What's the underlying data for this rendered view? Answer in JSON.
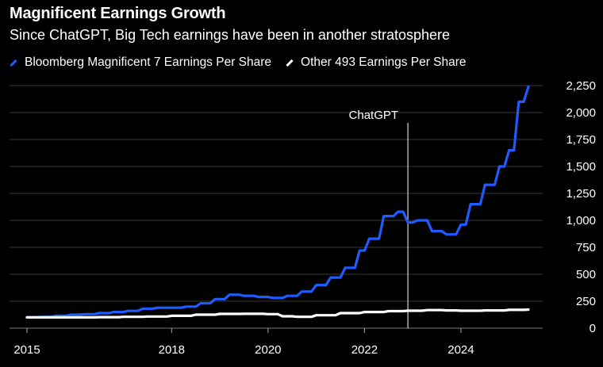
{
  "header": {
    "title": "Magnificent Earnings Growth",
    "subtitle": "Since ChatGPT, Big Tech earnings have been in another stratosphere"
  },
  "colors": {
    "background": "#000000",
    "mag7": "#1f5cff",
    "other": "#ffffff",
    "grid": "#3a3a3a"
  },
  "chart_data": {
    "type": "line",
    "title": "Magnificent Earnings Growth",
    "subtitle": "Since ChatGPT, Big Tech earnings have been in another stratosphere",
    "xlabel": "",
    "ylabel": "",
    "xlim": [
      2015.0,
      2025.4
    ],
    "ylim": [
      0,
      2250
    ],
    "x_ticks": [
      2015,
      2018,
      2020,
      2022,
      2024
    ],
    "y_ticks": [
      0,
      250,
      500,
      750,
      1000,
      1250,
      1500,
      1750,
      2000,
      2250
    ],
    "y_tick_labels": [
      "0",
      "250",
      "500",
      "750",
      "1,000",
      "1,250",
      "1,500",
      "1,750",
      "2,000",
      "2,250"
    ],
    "grid": true,
    "legend_position": "top-left",
    "annotation": {
      "label": "ChatGPT",
      "x": 2022.9
    },
    "series": [
      {
        "name": "Bloomberg Magnificent 7 Earnings Per Share",
        "color": "#1f5cff",
        "x": [
          2015.0,
          2015.3,
          2015.6,
          2015.9,
          2016.2,
          2016.5,
          2016.8,
          2017.1,
          2017.4,
          2017.7,
          2018.0,
          2018.3,
          2018.6,
          2018.9,
          2019.2,
          2019.5,
          2019.8,
          2020.1,
          2020.4,
          2020.7,
          2021.0,
          2021.3,
          2021.6,
          2021.9,
          2022.1,
          2022.4,
          2022.7,
          2022.9,
          2023.1,
          2023.4,
          2023.7,
          2024.0,
          2024.2,
          2024.5,
          2024.8,
          2025.0,
          2025.2,
          2025.4
        ],
        "values": [
          100,
          105,
          115,
          125,
          130,
          140,
          150,
          160,
          180,
          190,
          190,
          200,
          230,
          270,
          310,
          300,
          290,
          280,
          300,
          340,
          400,
          470,
          560,
          720,
          830,
          1040,
          1080,
          980,
          1000,
          900,
          870,
          960,
          1150,
          1330,
          1500,
          1650,
          2100,
          2240
        ]
      },
      {
        "name": "Other 493 Earnings Per Share",
        "color": "#ffffff",
        "x": [
          2015.0,
          2015.5,
          2016.0,
          2016.5,
          2017.0,
          2017.5,
          2018.0,
          2018.5,
          2019.0,
          2019.5,
          2020.0,
          2020.3,
          2020.6,
          2021.0,
          2021.5,
          2022.0,
          2022.5,
          2022.9,
          2023.3,
          2023.7,
          2024.0,
          2024.5,
          2025.0,
          2025.4
        ],
        "values": [
          100,
          100,
          100,
          102,
          105,
          108,
          115,
          125,
          132,
          133,
          130,
          110,
          105,
          120,
          140,
          150,
          158,
          162,
          168,
          165,
          162,
          165,
          170,
          172
        ]
      }
    ]
  }
}
